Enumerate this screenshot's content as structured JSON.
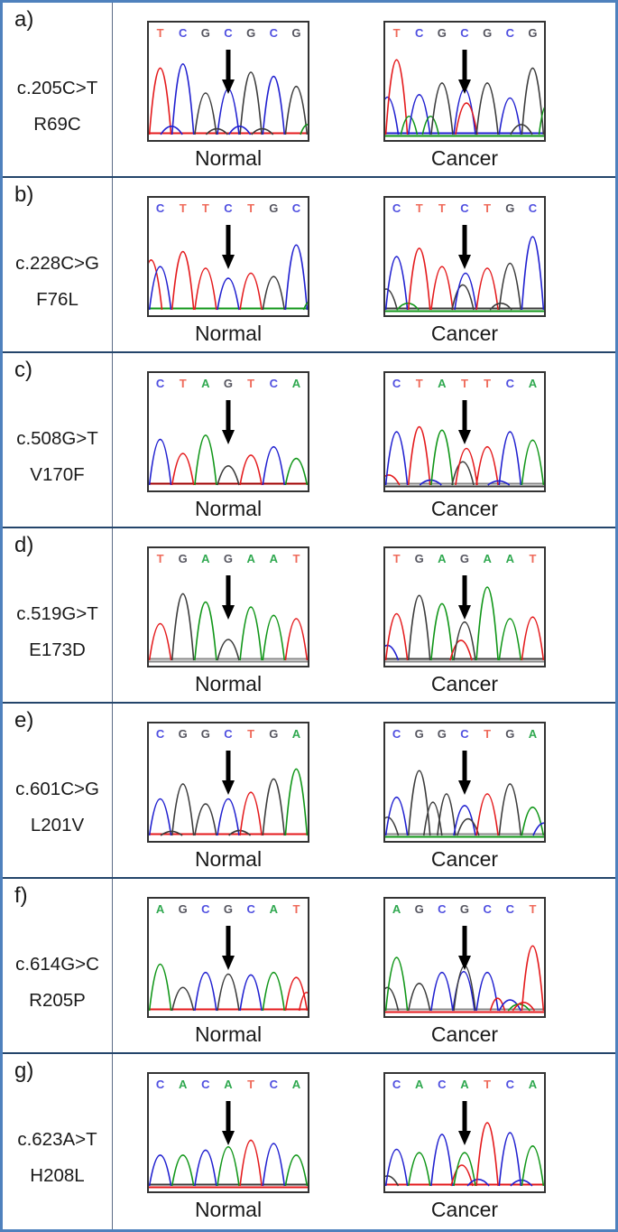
{
  "figure": {
    "column_labels": {
      "normal": "Normal",
      "cancer": "Cancer"
    },
    "letter_colors": {
      "A": "#2fa84f",
      "C": "#4f4fe0",
      "G": "#55555f",
      "T": "#ef6a5a"
    },
    "trace_colors": {
      "A": "#109618",
      "C": "#2020d0",
      "G": "#3c3c3c",
      "T": "#e41a1c"
    },
    "arrow_color": "#000000",
    "rows": [
      {
        "id": "a)",
        "mutation": "c.205C>T",
        "protein": "R69C",
        "arrow_index": 3,
        "normal": {
          "sequence": [
            "T",
            "C",
            "G",
            "C",
            "G",
            "C",
            "G"
          ],
          "peaks": [
            [
              0,
              "T",
              0.8
            ],
            [
              1,
              "C",
              0.85
            ],
            [
              2,
              "G",
              0.5
            ],
            [
              3,
              "C",
              0.55
            ],
            [
              4,
              "G",
              0.75
            ],
            [
              5,
              "C",
              0.7
            ],
            [
              6,
              "G",
              0.58
            ],
            [
              0.5,
              "C",
              0.1
            ],
            [
              2.5,
              "G",
              0.07
            ],
            [
              3.5,
              "C",
              0.1
            ],
            [
              4.5,
              "G",
              0.07
            ],
            [
              6.5,
              "A",
              0.12,
              0,
              8
            ]
          ],
          "baselines": [
            "#e41a1c"
          ]
        },
        "cancer": {
          "sequence": [
            "T",
            "C",
            "G",
            "C",
            "G",
            "C",
            "G"
          ],
          "peaks": [
            [
              -0.4,
              "C",
              0.45
            ],
            [
              0,
              "T",
              0.9
            ],
            [
              0.55,
              "A",
              0.22,
              0,
              9
            ],
            [
              1,
              "C",
              0.48
            ],
            [
              1.5,
              "A",
              0.22,
              0,
              9
            ],
            [
              2,
              "G",
              0.62
            ],
            [
              3,
              "C",
              0.55
            ],
            [
              3,
              "T",
              0.38,
              2
            ],
            [
              4,
              "G",
              0.62
            ],
            [
              5,
              "C",
              0.44
            ],
            [
              5.5,
              "G",
              0.12
            ],
            [
              6,
              "G",
              0.8
            ],
            [
              6.6,
              "A",
              0.35,
              0,
              8
            ]
          ],
          "baselines": [
            "#2020d0",
            "#109618"
          ]
        }
      },
      {
        "id": "b)",
        "mutation": "c.228C>G",
        "protein": "F76L",
        "arrow_index": 3,
        "normal": {
          "sequence": [
            "C",
            "T",
            "T",
            "C",
            "T",
            "G",
            "C"
          ],
          "peaks": [
            [
              -0.4,
              "T",
              0.6
            ],
            [
              0,
              "C",
              0.52
            ],
            [
              1,
              "T",
              0.7
            ],
            [
              2,
              "T",
              0.5
            ],
            [
              3,
              "C",
              0.38
            ],
            [
              4,
              "T",
              0.44
            ],
            [
              5,
              "G",
              0.4
            ],
            [
              6,
              "C",
              0.78
            ],
            [
              6.6,
              "A",
              0.1,
              0,
              7
            ]
          ],
          "baselines": [
            "#109618"
          ]
        },
        "cancer": {
          "sequence": [
            "C",
            "T",
            "T",
            "C",
            "T",
            "G",
            "C"
          ],
          "peaks": [
            [
              -0.45,
              "G",
              0.25
            ],
            [
              0,
              "C",
              0.64
            ],
            [
              0.5,
              "A",
              0.08
            ],
            [
              1,
              "T",
              0.74
            ],
            [
              2,
              "T",
              0.52
            ],
            [
              3,
              "G",
              0.3,
              -2
            ],
            [
              3,
              "C",
              0.44,
              1
            ],
            [
              4,
              "T",
              0.5
            ],
            [
              4.6,
              "G",
              0.08
            ],
            [
              5,
              "G",
              0.56
            ],
            [
              6,
              "C",
              0.88
            ]
          ],
          "baselines": [
            "#3c3c3c",
            "#109618"
          ]
        }
      },
      {
        "id": "c)",
        "mutation": "c.508G>T",
        "protein": "V170F",
        "arrow_index": 3,
        "normal": {
          "sequence": [
            "C",
            "T",
            "A",
            "G",
            "T",
            "C",
            "A"
          ],
          "peaks": [
            [
              0,
              "C",
              0.55
            ],
            [
              1,
              "T",
              0.38
            ],
            [
              2,
              "A",
              0.6
            ],
            [
              3,
              "G",
              0.23
            ],
            [
              4,
              "T",
              0.36
            ],
            [
              5,
              "C",
              0.46
            ],
            [
              6,
              "A",
              0.32
            ]
          ],
          "baselines": [
            "#a00000"
          ]
        },
        "cancer": {
          "sequence": [
            "C",
            "T",
            "A",
            "T",
            "T",
            "C",
            "A"
          ],
          "peaks": [
            [
              -0.35,
              "T",
              0.12
            ],
            [
              0,
              "C",
              0.64
            ],
            [
              1,
              "T",
              0.7
            ],
            [
              1.5,
              "C",
              0.06
            ],
            [
              2,
              "A",
              0.66
            ],
            [
              3,
              "G",
              0.28,
              -2
            ],
            [
              3,
              "T",
              0.44,
              2
            ],
            [
              4,
              "T",
              0.46
            ],
            [
              4.5,
              "C",
              0.05
            ],
            [
              5,
              "C",
              0.64
            ],
            [
              6,
              "A",
              0.54
            ]
          ],
          "baselines": [
            "#888888",
            "#3c3c3c"
          ]
        }
      },
      {
        "id": "d)",
        "mutation": "c.519G>T",
        "protein": "E173D",
        "arrow_index": 3,
        "normal": {
          "sequence": [
            "T",
            "G",
            "A",
            "G",
            "A",
            "A",
            "T"
          ],
          "peaks": [
            [
              0,
              "T",
              0.44
            ],
            [
              1,
              "G",
              0.8
            ],
            [
              2,
              "A",
              0.7
            ],
            [
              3,
              "G",
              0.25
            ],
            [
              4,
              "A",
              0.64
            ],
            [
              5,
              "A",
              0.54
            ],
            [
              6,
              "T",
              0.5
            ]
          ],
          "baselines": [
            "#888888",
            "#888888"
          ]
        },
        "cancer": {
          "sequence": [
            "T",
            "G",
            "A",
            "G",
            "A",
            "A",
            "T"
          ],
          "peaks": [
            [
              -0.4,
              "C",
              0.18
            ],
            [
              0,
              "T",
              0.56
            ],
            [
              1,
              "G",
              0.78
            ],
            [
              2,
              "A",
              0.68
            ],
            [
              3,
              "T",
              0.24,
              -4
            ],
            [
              3,
              "G",
              0.46
            ],
            [
              4,
              "A",
              0.88
            ],
            [
              5,
              "A",
              0.5
            ],
            [
              6,
              "T",
              0.52
            ]
          ],
          "baselines": [
            "#3c3c3c",
            "#888888"
          ]
        }
      },
      {
        "id": "e)",
        "mutation": "c.601C>G",
        "protein": "L201V",
        "arrow_index": 3,
        "normal": {
          "sequence": [
            "C",
            "G",
            "G",
            "C",
            "T",
            "G",
            "A"
          ],
          "peaks": [
            [
              0,
              "C",
              0.44
            ],
            [
              0.5,
              "G",
              0.05
            ],
            [
              1,
              "G",
              0.62
            ],
            [
              2,
              "G",
              0.38
            ],
            [
              3,
              "C",
              0.44
            ],
            [
              3.5,
              "G",
              0.06
            ],
            [
              4,
              "T",
              0.52
            ],
            [
              5,
              "G",
              0.68
            ],
            [
              6,
              "A",
              0.8
            ]
          ],
          "baselines": [
            "#e41a1c"
          ]
        },
        "cancer": {
          "sequence": [
            "C",
            "G",
            "G",
            "C",
            "T",
            "G",
            "A"
          ],
          "peaks": [
            [
              -0.4,
              "G",
              0.22
            ],
            [
              0,
              "C",
              0.46
            ],
            [
              1,
              "G",
              0.78
            ],
            [
              1.6,
              "G",
              0.4,
              0,
              10
            ],
            [
              2.2,
              "G",
              0.5,
              0,
              10
            ],
            [
              3,
              "C",
              0.36
            ],
            [
              3.15,
              "G",
              0.2
            ],
            [
              4,
              "T",
              0.5
            ],
            [
              5,
              "G",
              0.62
            ],
            [
              6,
              "A",
              0.34
            ],
            [
              6.5,
              "C",
              0.15
            ]
          ],
          "baselines": [
            "#888888",
            "#109618"
          ]
        }
      },
      {
        "id": "f)",
        "mutation": "c.614G>C",
        "protein": "R205P",
        "arrow_index": 3,
        "normal": {
          "sequence": [
            "A",
            "G",
            "C",
            "G",
            "C",
            "A",
            "T"
          ],
          "peaks": [
            [
              0,
              "A",
              0.56
            ],
            [
              1,
              "G",
              0.28
            ],
            [
              2,
              "C",
              0.46
            ],
            [
              3,
              "G",
              0.44
            ],
            [
              4,
              "C",
              0.43
            ],
            [
              5,
              "A",
              0.46
            ],
            [
              6,
              "T",
              0.4
            ],
            [
              6.45,
              "T",
              0.22,
              0,
              8
            ]
          ],
          "baselines": [
            "#e41a1c"
          ]
        },
        "cancer": {
          "sequence": [
            "A",
            "G",
            "C",
            "G",
            "C",
            "C",
            "T"
          ],
          "peaks": [
            [
              -0.4,
              "G",
              0.28
            ],
            [
              0,
              "A",
              0.64
            ],
            [
              1,
              "G",
              0.33
            ],
            [
              2,
              "C",
              0.46
            ],
            [
              3,
              "C",
              0.47,
              -1
            ],
            [
              3,
              "G",
              0.54
            ],
            [
              4,
              "C",
              0.46
            ],
            [
              4.45,
              "T",
              0.15,
              0,
              8
            ],
            [
              5,
              "C",
              0.13
            ],
            [
              5.4,
              "A",
              0.08
            ],
            [
              5.6,
              "T",
              0.1
            ],
            [
              6,
              "T",
              0.78
            ]
          ],
          "baselines": [
            "#888888",
            "#e41a1c"
          ]
        }
      },
      {
        "id": "g)",
        "mutation": "c.623A>T",
        "protein": "H208L",
        "arrow_index": 3,
        "normal": {
          "sequence": [
            "C",
            "A",
            "C",
            "A",
            "T",
            "C",
            "A"
          ],
          "peaks": [
            [
              0,
              "C",
              0.37
            ],
            [
              1,
              "A",
              0.37
            ],
            [
              2,
              "C",
              0.43
            ],
            [
              3,
              "A",
              0.47
            ],
            [
              4,
              "T",
              0.55
            ],
            [
              5,
              "C",
              0.51
            ],
            [
              6,
              "A",
              0.37
            ]
          ],
          "baselines": [
            "#3c3c3c",
            "#e41a1c"
          ]
        },
        "cancer": {
          "sequence": [
            "C",
            "A",
            "C",
            "A",
            "T",
            "C",
            "A"
          ],
          "peaks": [
            [
              -0.4,
              "G",
              0.12
            ],
            [
              0,
              "C",
              0.44
            ],
            [
              1,
              "A",
              0.4
            ],
            [
              2,
              "C",
              0.62
            ],
            [
              3,
              "T",
              0.25,
              -3
            ],
            [
              3,
              "A",
              0.4
            ],
            [
              3.6,
              "C",
              0.08
            ],
            [
              4,
              "T",
              0.76
            ],
            [
              5,
              "C",
              0.64
            ],
            [
              5.5,
              "C",
              0.07
            ],
            [
              6,
              "A",
              0.48
            ]
          ],
          "baselines": [
            "#e41a1c"
          ]
        }
      }
    ]
  }
}
